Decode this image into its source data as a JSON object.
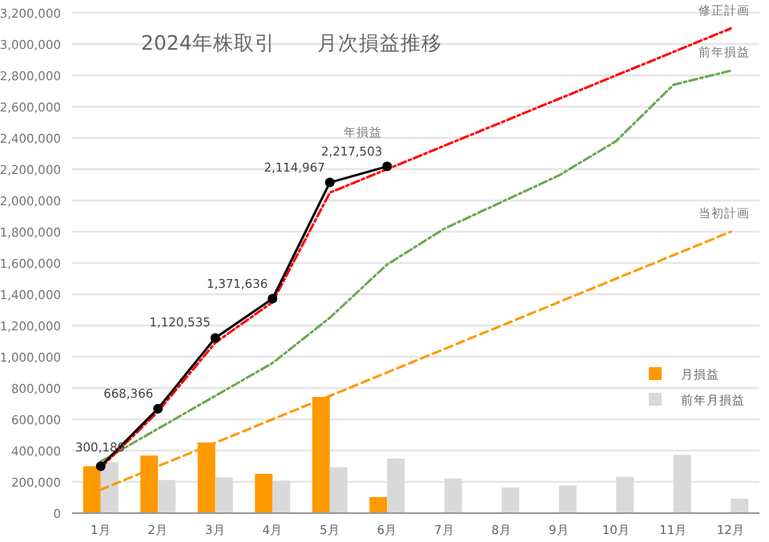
{
  "chart_data": {
    "type": "bar",
    "title": "2024年株取引　　月次損益推移",
    "categories": [
      "1月",
      "2月",
      "3月",
      "4月",
      "5月",
      "6月",
      "7月",
      "8月",
      "9月",
      "10月",
      "11月",
      "12月"
    ],
    "series": [
      {
        "name": "月損益",
        "color": "#ff9900",
        "values": [
          300180,
          368186,
          452169,
          251101,
          743331,
          102536,
          null,
          null,
          null,
          null,
          null,
          null
        ]
      },
      {
        "name": "前年月損益",
        "color": "#d9d9d9",
        "values": [
          325000,
          212000,
          229000,
          208000,
          294000,
          349000,
          222000,
          164000,
          178000,
          232000,
          373000,
          92000
        ]
      },
      {
        "type": "line",
        "color": "#ff9900",
        "line_style": "dashed",
        "marker": "none",
        "name": "当初計画",
        "values": [
          150000,
          300000,
          450000,
          600000,
          750000,
          900000,
          1050000,
          1200000,
          1350000,
          1500000,
          1650000,
          1800000
        ]
      },
      {
        "type": "line",
        "color": "#6aa84f",
        "line_style": "dashdot",
        "marker": "none",
        "name": "前年損益",
        "values": [
          330000,
          540000,
          750000,
          960000,
          1250000,
          1590000,
          1820000,
          1990000,
          2160000,
          2380000,
          2740000,
          2830000
        ]
      },
      {
        "type": "line",
        "color": "#ff0000",
        "line_style": "dashdot",
        "marker": "none",
        "name": "修正計画",
        "values": [
          290000,
          650000,
          1090000,
          1350000,
          2050000,
          2200000,
          2350000,
          2500000,
          2650000,
          2800000,
          2950000,
          3100000
        ]
      },
      {
        "type": "line",
        "color": "#000000",
        "line_style": "solid",
        "marker": "circle",
        "values": [
          300180,
          668366,
          1120535,
          1371636,
          2114967,
          2217503,
          null,
          null,
          null,
          null,
          null,
          null
        ],
        "value_labels": [
          "300,180",
          "668,366",
          "1,120,535",
          "1,371,636",
          "2,114,967",
          "2,217,503",
          null,
          null,
          null,
          null,
          null,
          null
        ]
      }
    ],
    "annotations": [
      {
        "text": "年損益",
        "x": "6月",
        "y": 2217503
      }
    ],
    "ylim": [
      0,
      3200000
    ],
    "yticks": [
      0,
      {
        "value": 200000,
        "label": "200,000"
      },
      {
        "value": 400000,
        "label": "400,000"
      },
      {
        "value": 600000,
        "label": "600,000"
      },
      {
        "value": 800000,
        "label": "800,000"
      },
      {
        "value": 1000000,
        "label": "1,000,000"
      },
      {
        "value": 1200000,
        "label": "1,200,000"
      },
      {
        "value": 1400000,
        "label": "1,400,000"
      },
      {
        "value": 1600000,
        "label": "1,600,000"
      },
      {
        "value": 1800000,
        "label": "1,800,000"
      },
      {
        "value": 2000000,
        "label": "2,000,000"
      },
      {
        "value": 2200000,
        "label": "2,200,000"
      },
      {
        "value": 2400000,
        "label": "2,400,000"
      },
      {
        "value": 2600000,
        "label": "2,600,000"
      },
      {
        "value": 2800000,
        "label": "2,800,000"
      },
      {
        "value": 3000000,
        "label": "3,000,000"
      },
      {
        "value": 3200000,
        "label": "3,200,000"
      }
    ],
    "grid": "y",
    "legend": "right"
  }
}
